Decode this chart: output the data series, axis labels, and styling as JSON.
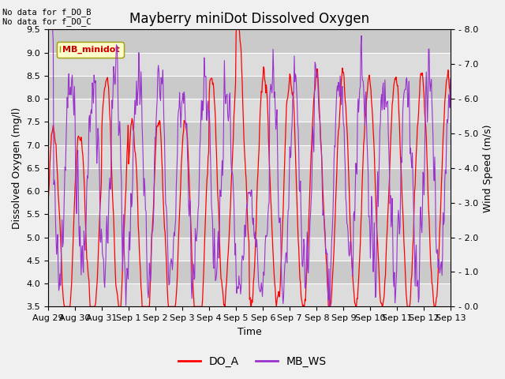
{
  "title": "Mayberry miniDot Dissolved Oxygen",
  "xlabel": "Time",
  "ylabel_left": "Dissolved Oxygen (mg/l)",
  "ylabel_right": "Wind Speed (m∕s)",
  "annotation_text": "No data for f_DO_B\nNo data for f_DO_C",
  "legend_label_box": "MB_minidot",
  "legend_labels": [
    "DO_A",
    "MB_WS"
  ],
  "do_color": "#ff0000",
  "ws_color": "#9933cc",
  "ylim_left": [
    3.5,
    9.5
  ],
  "ylim_right": [
    0.0,
    8.0
  ],
  "bg_color": "#e0e0e0",
  "plot_bg_color": "#f0f0f0",
  "grid_color": "#ffffff",
  "title_fontsize": 12,
  "axis_fontsize": 9,
  "tick_fontsize": 8,
  "band_colors": [
    "#dcdcdc",
    "#c8c8c8"
  ]
}
